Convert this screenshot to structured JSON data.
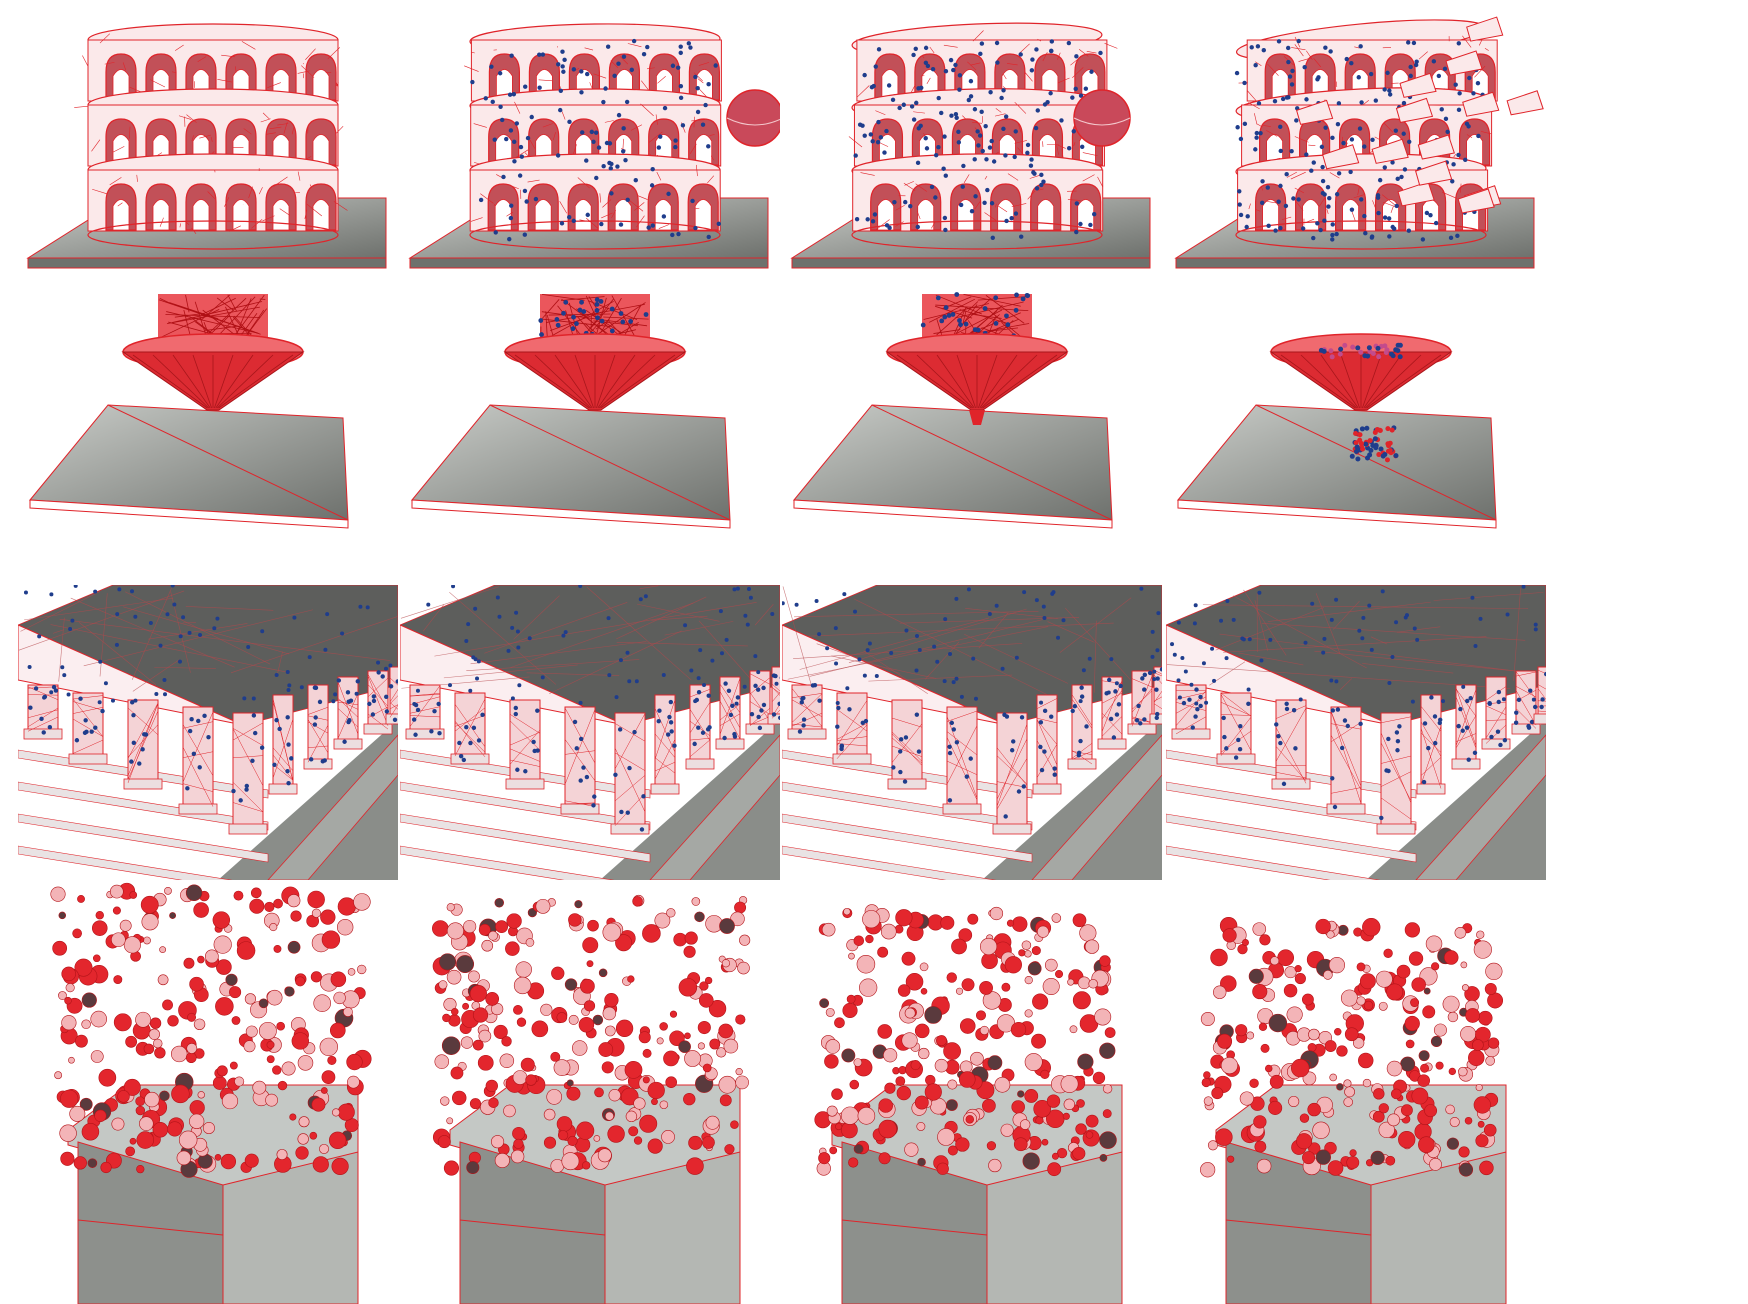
{
  "figure": {
    "columns": 4,
    "rows": [
      {
        "scene": "colosseum-sphere-funnel",
        "frames": [
          {
            "stage": "intact",
            "impactor_visible": false,
            "collapse": 0.0,
            "poured_fraction": 0.0
          },
          {
            "stage": "impact",
            "impactor_visible": true,
            "collapse": 0.1,
            "poured_fraction": 0.0
          },
          {
            "stage": "breaking",
            "impactor_visible": true,
            "collapse": 0.35,
            "poured_fraction": 0.2
          },
          {
            "stage": "collapsed",
            "impactor_visible": false,
            "collapse": 0.8,
            "poured_fraction": 0.9
          }
        ]
      },
      {
        "scene": "temple",
        "frames": [
          {
            "stage": "frame-1"
          },
          {
            "stage": "frame-2"
          },
          {
            "stage": "frame-3"
          },
          {
            "stage": "frame-4"
          }
        ]
      },
      {
        "scene": "debris-falling-into-box",
        "frames": [
          {
            "stage": "falling",
            "fill_level": 0.0
          },
          {
            "stage": "falling",
            "fill_level": 0.1
          },
          {
            "stage": "settling",
            "fill_level": 0.25
          },
          {
            "stage": "settled",
            "fill_level": 0.4
          }
        ]
      }
    ],
    "colors": {
      "wireframe": "#e0242a",
      "constraint_markers": "#1f3d8c",
      "ground_light": "#c9ccc8",
      "ground_dark": "#6e716d",
      "temple_roof": "#5d5e5c",
      "surface_tint": "#fbe9ea"
    }
  }
}
